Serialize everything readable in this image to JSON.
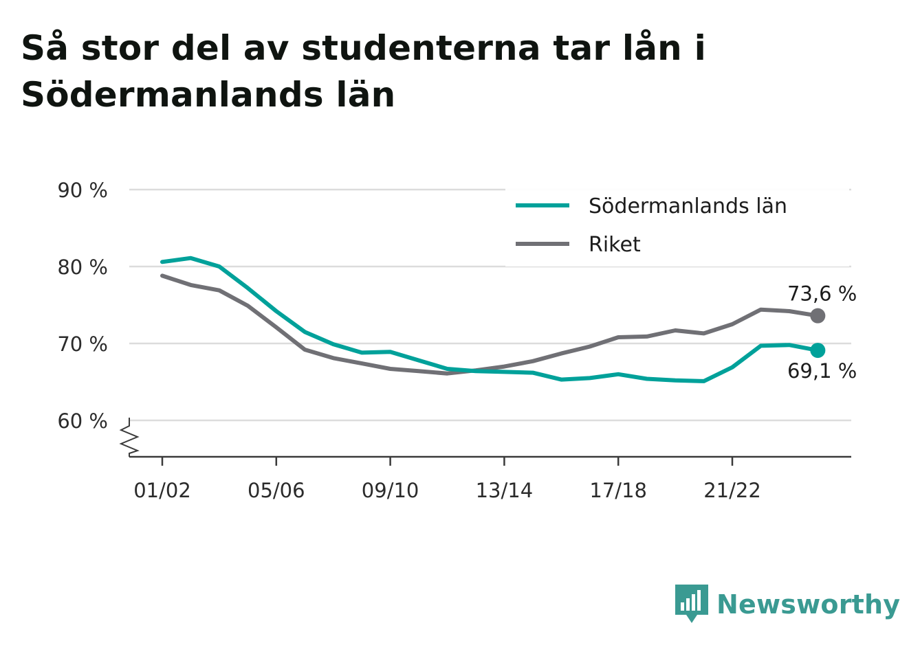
{
  "title": "Så stor del av studenterna tar lån i Södermanlands län",
  "brand": {
    "name": "Newsworthy",
    "icon": "newsworthy-logo-icon",
    "color": "#3a9a92"
  },
  "chart_data": {
    "type": "line",
    "title": "Så stor del av studenterna tar lån i Södermanlands län",
    "xlabel": "",
    "ylabel": "",
    "x": [
      "01/02",
      "02/03",
      "03/04",
      "04/05",
      "05/06",
      "06/07",
      "07/08",
      "08/09",
      "09/10",
      "10/11",
      "11/12",
      "12/13",
      "13/14",
      "14/15",
      "15/16",
      "16/17",
      "17/18",
      "18/19",
      "19/20",
      "20/21",
      "21/22",
      "22/23",
      "23/24",
      "24/25"
    ],
    "x_tick_labels": [
      "01/02",
      "05/06",
      "09/10",
      "13/14",
      "17/18",
      "21/22"
    ],
    "ylim": [
      55,
      90
    ],
    "y_ticks": [
      60,
      70,
      80,
      90
    ],
    "y_tick_labels": [
      "60 %",
      "70 %",
      "80 %",
      "90 %"
    ],
    "axis_break": true,
    "grid": true,
    "legend_position": "top-right",
    "series": [
      {
        "name": "Södermanlands län",
        "color": "#00a19a",
        "values": [
          80.6,
          81.1,
          80.0,
          77.2,
          74.2,
          71.5,
          69.9,
          68.8,
          68.9,
          67.8,
          66.7,
          66.4,
          66.3,
          66.2,
          65.3,
          65.5,
          66.0,
          65.4,
          65.2,
          65.1,
          66.9,
          69.7,
          69.8,
          69.1
        ],
        "end_label": "69,1 %"
      },
      {
        "name": "Riket",
        "color": "#707075",
        "values": [
          78.8,
          77.6,
          76.9,
          74.9,
          72.1,
          69.2,
          68.1,
          67.4,
          66.7,
          66.4,
          66.1,
          66.5,
          67.0,
          67.7,
          68.7,
          69.6,
          70.8,
          70.9,
          71.7,
          71.3,
          72.5,
          74.4,
          74.2,
          73.6
        ],
        "end_label": "73,6 %"
      }
    ]
  }
}
